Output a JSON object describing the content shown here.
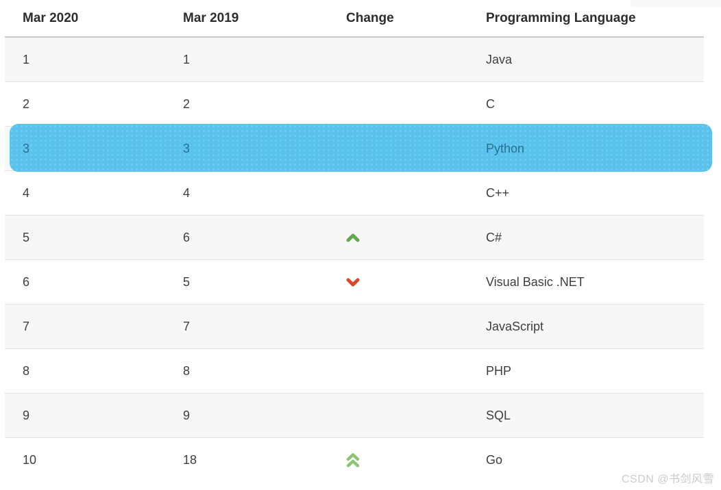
{
  "page": {
    "background": "#ffffff"
  },
  "table": {
    "columns": [
      "Mar 2020",
      "Mar 2019",
      "Change",
      "Programming Language"
    ],
    "rows": [
      {
        "mar2020": "1",
        "mar2019": "1",
        "change": "",
        "language": "Java",
        "highlighted": false
      },
      {
        "mar2020": "2",
        "mar2019": "2",
        "change": "",
        "language": "C",
        "highlighted": false
      },
      {
        "mar2020": "3",
        "mar2019": "3",
        "change": "",
        "language": "Python",
        "highlighted": true
      },
      {
        "mar2020": "4",
        "mar2019": "4",
        "change": "",
        "language": "C++",
        "highlighted": false
      },
      {
        "mar2020": "5",
        "mar2019": "6",
        "change": "up",
        "language": "C#",
        "highlighted": false
      },
      {
        "mar2020": "6",
        "mar2019": "5",
        "change": "down",
        "language": "Visual Basic .NET",
        "highlighted": false
      },
      {
        "mar2020": "7",
        "mar2019": "7",
        "change": "",
        "language": "JavaScript",
        "highlighted": false
      },
      {
        "mar2020": "8",
        "mar2019": "8",
        "change": "",
        "language": "PHP",
        "highlighted": false
      },
      {
        "mar2020": "9",
        "mar2019": "9",
        "change": "",
        "language": "SQL",
        "highlighted": false
      },
      {
        "mar2020": "10",
        "mar2019": "18",
        "change": "up-double",
        "language": "Go",
        "highlighted": false
      }
    ],
    "icons": {
      "up": "chevron-up-icon",
      "down": "chevron-down-icon",
      "up-double": "double-chevron-up-icon"
    },
    "colors": {
      "up_arrow": "#5fa84d",
      "down_arrow": "#d6492c",
      "double_up_arrow": "#8cc473",
      "row_stripe": "#f7f7f7",
      "highlight": "#59c3ee",
      "highlight_text": "#266f94",
      "header_text": "#2d2d2d",
      "cell_text": "#3e3e3e"
    }
  },
  "watermark": {
    "text": "CSDN @书剑风雪",
    "color": "#cbcbcb"
  }
}
